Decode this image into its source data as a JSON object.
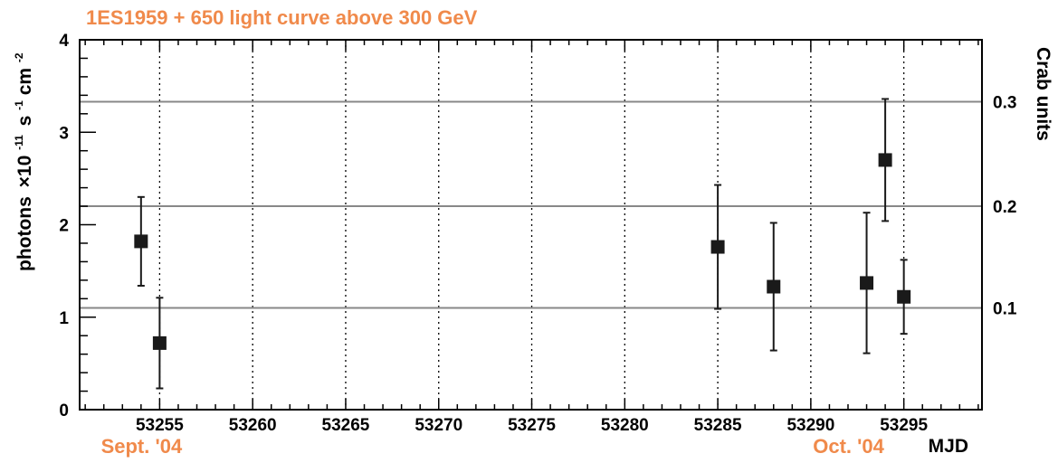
{
  "chart_data": {
    "type": "scatter",
    "title": "1ES1959 + 650 light curve above 300 GeV",
    "xlabel": "MJD",
    "ylabel_left": {
      "main": "photons",
      "times": "×10",
      "exp1": "-11",
      "s": "s",
      "exp2": "-1",
      "cm": "cm",
      "exp3": "-2"
    },
    "ylabel_right": "Crab units",
    "xlim": [
      53250.7,
      53299.2
    ],
    "ylim": [
      0,
      4
    ],
    "x_ticks": [
      53255,
      53260,
      53265,
      53270,
      53275,
      53280,
      53285,
      53290,
      53295
    ],
    "y_ticks": [
      0,
      1,
      2,
      3,
      4
    ],
    "vertical_grid": true,
    "crab_levels": [
      {
        "label": "0.1",
        "flux": 1.1
      },
      {
        "label": "0.2",
        "flux": 2.2
      },
      {
        "label": "0.3",
        "flux": 3.33
      }
    ],
    "month_labels": [
      {
        "text": "Sept. '04",
        "at": 53255
      },
      {
        "text": "Oct. '04",
        "at": 53293
      }
    ],
    "points": [
      {
        "x": 53254,
        "y": 1.82,
        "err": 0.48
      },
      {
        "x": 53255,
        "y": 0.72,
        "err": 0.49
      },
      {
        "x": 53285,
        "y": 1.76,
        "err": 0.67
      },
      {
        "x": 53288,
        "y": 1.33,
        "err": 0.69
      },
      {
        "x": 53293,
        "y": 1.37,
        "err": 0.76
      },
      {
        "x": 53294,
        "y": 2.7,
        "err": 0.66
      },
      {
        "x": 53295,
        "y": 1.22,
        "err": 0.4
      }
    ],
    "colors": {
      "accent": "#f08a4b",
      "marker": "#1a1a1a",
      "crab_line": "#888888"
    }
  }
}
